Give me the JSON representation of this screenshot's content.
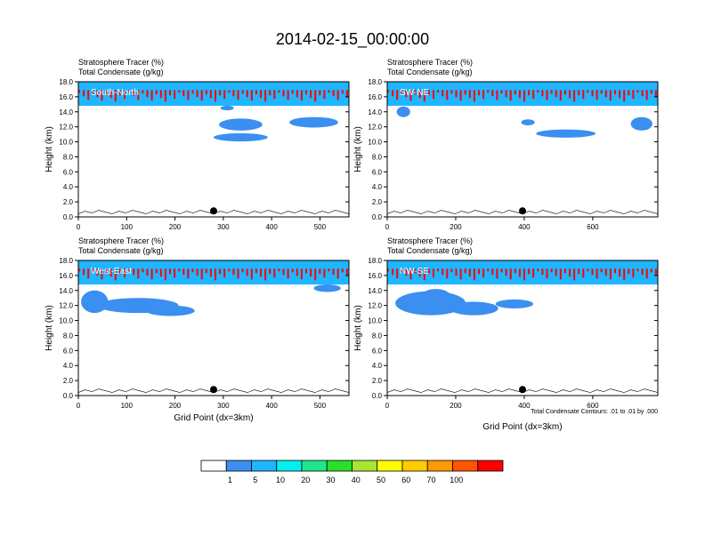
{
  "title": "2014-02-15_00:00:00",
  "chart_data": [
    {
      "type": "heatmap",
      "cross_section": "South-North",
      "subtitle_lines": [
        "Stratosphere Tracer   (%)",
        "Total Condensate   (g/kg)"
      ],
      "ylabel": "Height (km)",
      "xlabel": "",
      "xlim": [
        0,
        560
      ],
      "ylim": [
        0,
        18
      ],
      "x_ticks": [
        "0",
        "100",
        "200",
        "300",
        "400",
        "500"
      ],
      "x_tick_values": [
        0,
        100,
        200,
        300,
        400,
        500
      ],
      "y_ticks": [
        "0.0",
        "2.0",
        "4.0",
        "6.0",
        "8.0",
        "10.0",
        "12.0",
        "14.0",
        "16.0",
        "18.0"
      ],
      "marker_x": 280,
      "footnote": ""
    },
    {
      "type": "heatmap",
      "cross_section": "SW-NE",
      "subtitle_lines": [
        "Stratosphere Tracer   (%)",
        "Total Condensate   (g/kg)"
      ],
      "ylabel": "Height (km)",
      "xlabel": "",
      "xlim": [
        0,
        790
      ],
      "ylim": [
        0,
        18
      ],
      "x_ticks": [
        "0",
        "200",
        "400",
        "600"
      ],
      "x_tick_values": [
        0,
        200,
        400,
        600
      ],
      "y_ticks": [
        "0.0",
        "2.0",
        "4.0",
        "6.0",
        "8.0",
        "10.0",
        "12.0",
        "14.0",
        "16.0",
        "18.0"
      ],
      "marker_x": 395,
      "footnote": ""
    },
    {
      "type": "heatmap",
      "cross_section": "West-East",
      "subtitle_lines": [
        "Stratosphere Tracer   (%)",
        "Total Condensate   (g/kg)"
      ],
      "ylabel": "Height (km)",
      "xlabel": "Grid Point (dx=3km)",
      "xlim": [
        0,
        560
      ],
      "ylim": [
        0,
        18
      ],
      "x_ticks": [
        "0",
        "100",
        "200",
        "300",
        "400",
        "500"
      ],
      "x_tick_values": [
        0,
        100,
        200,
        300,
        400,
        500
      ],
      "y_ticks": [
        "0.0",
        "2.0",
        "4.0",
        "6.0",
        "8.0",
        "10.0",
        "12.0",
        "14.0",
        "16.0",
        "18.0"
      ],
      "marker_x": 280,
      "footnote": ""
    },
    {
      "type": "heatmap",
      "cross_section": "NW-SE",
      "subtitle_lines": [
        "Stratosphere Tracer   (%)",
        "Total Condensate   (g/kg)"
      ],
      "ylabel": "Height (km)",
      "xlabel": "Grid Point (dx=3km)",
      "xlim": [
        0,
        790
      ],
      "ylim": [
        0,
        18
      ],
      "x_ticks": [
        "0",
        "200",
        "400",
        "600"
      ],
      "x_tick_values": [
        0,
        200,
        400,
        600
      ],
      "y_ticks": [
        "0.0",
        "2.0",
        "4.0",
        "6.0",
        "8.0",
        "10.0",
        "12.0",
        "14.0",
        "16.0",
        "18.0"
      ],
      "marker_x": 395,
      "footnote": "Total Condensate Contours: .01 to .01 by .000"
    }
  ],
  "colorbar": {
    "labels": [
      "1",
      "5",
      "10",
      "20",
      "30",
      "40",
      "50",
      "60",
      "70",
      "100"
    ],
    "colors": [
      "#ffffff",
      "#3a8ff0",
      "#1fb6ff",
      "#00f0f0",
      "#22e68c",
      "#28e028",
      "#a6e633",
      "#ffff00",
      "#ffcc00",
      "#ff9900",
      "#ff5500",
      "#ff0000"
    ]
  }
}
